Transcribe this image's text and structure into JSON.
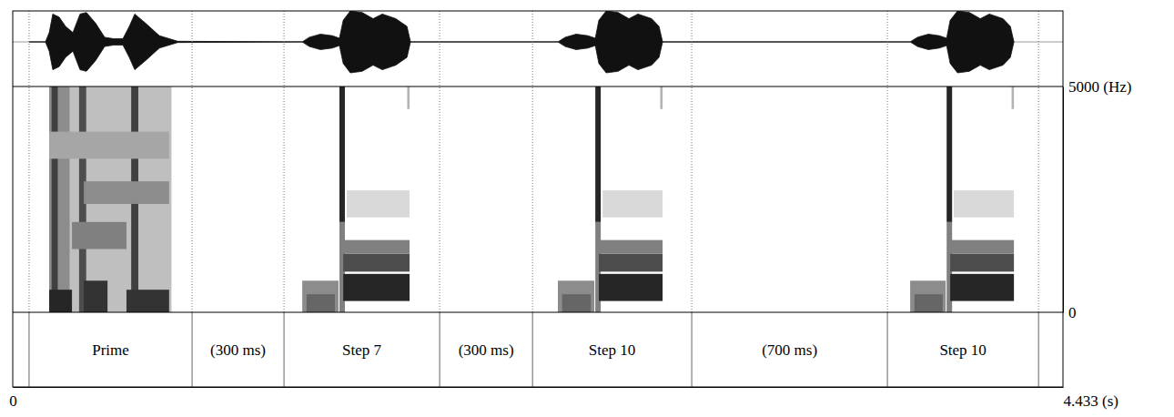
{
  "chart_data": {
    "type": "spectrogram",
    "xlim": [
      0,
      4.433
    ],
    "xticks": [
      0,
      {
        "value": 4.433,
        "label": "4.433 (s)"
      }
    ],
    "ylim": [
      0,
      5000
    ],
    "yticks": [
      0,
      {
        "value": 5000,
        "label": "5000 (Hz)"
      }
    ],
    "tick_labels": true,
    "waveform": {
      "ylim": [
        -1,
        1
      ],
      "t": [
        0.069,
        0.138,
        0.154,
        0.169,
        0.196,
        0.223,
        0.254,
        0.284,
        0.311,
        0.35,
        0.388,
        0.426,
        0.465,
        0.492,
        0.515,
        0.561,
        0.619,
        0.696,
        1.222,
        1.252,
        1.299,
        1.349,
        1.379,
        1.395,
        1.425,
        1.475,
        1.521,
        1.56,
        1.617,
        1.664,
        1.679,
        2.301,
        2.332,
        2.378,
        2.428,
        2.459,
        2.474,
        2.505,
        2.555,
        2.601,
        2.639,
        2.697,
        2.728,
        2.743,
        3.788,
        3.819,
        3.865,
        3.911,
        3.942,
        3.957,
        3.988,
        4.038,
        4.084,
        4.122,
        4.18,
        4.211,
        4.226
      ],
      "amplitude": [
        0,
        0,
        0.3,
        0.9,
        0.8,
        0.5,
        0.3,
        0.9,
        0.95,
        0.6,
        0.15,
        0.1,
        0.1,
        0.5,
        0.9,
        0.6,
        0.2,
        0.02,
        0,
        0.15,
        0.25,
        0.2,
        0.12,
        0.7,
        1.0,
        0.95,
        0.75,
        0.9,
        0.75,
        0.5,
        0,
        0,
        0.15,
        0.25,
        0.2,
        0.12,
        0.7,
        1.0,
        0.95,
        0.75,
        0.9,
        0.75,
        0.5,
        0,
        0,
        0.15,
        0.25,
        0.2,
        0.12,
        0.7,
        1.0,
        0.95,
        0.75,
        0.9,
        0.75,
        0.5,
        0
      ]
    },
    "spectrogram": {
      "cells": [
        [
          0.154,
          0.67,
          0,
          5000,
          0.25
        ],
        [
          0.154,
          0.24,
          0,
          5000,
          0.45
        ],
        [
          0.164,
          0.19,
          0,
          5000,
          0.75
        ],
        [
          0.28,
          0.31,
          0,
          5000,
          0.7
        ],
        [
          0.5,
          0.53,
          0,
          5000,
          0.75
        ],
        [
          0.25,
          0.48,
          1400,
          2000,
          0.5
        ],
        [
          0.3,
          0.66,
          2400,
          2900,
          0.45
        ],
        [
          0.154,
          0.66,
          3400,
          4000,
          0.35
        ],
        [
          0.154,
          0.25,
          0,
          500,
          0.85
        ],
        [
          0.3,
          0.4,
          0,
          700,
          0.8
        ],
        [
          0.48,
          0.66,
          0,
          500,
          0.8
        ],
        [
          1.222,
          1.375,
          0,
          700,
          0.45
        ],
        [
          1.24,
          1.36,
          0,
          400,
          0.6
        ],
        [
          1.379,
          1.402,
          0,
          2000,
          0.5
        ],
        [
          1.395,
          1.675,
          250,
          850,
          0.85
        ],
        [
          1.395,
          1.675,
          900,
          1300,
          0.7
        ],
        [
          1.395,
          1.675,
          1300,
          1600,
          0.5
        ],
        [
          1.41,
          1.675,
          2100,
          2700,
          0.15
        ],
        [
          1.665,
          1.675,
          4500,
          5000,
          0.3
        ],
        [
          1.379,
          1.402,
          2000,
          5000,
          0.85
        ],
        [
          2.301,
          2.455,
          0,
          700,
          0.45
        ],
        [
          2.319,
          2.44,
          0,
          400,
          0.6
        ],
        [
          2.459,
          2.482,
          0,
          2000,
          0.5
        ],
        [
          2.474,
          2.743,
          250,
          850,
          0.85
        ],
        [
          2.474,
          2.743,
          900,
          1300,
          0.7
        ],
        [
          2.474,
          2.743,
          1300,
          1600,
          0.5
        ],
        [
          2.49,
          2.743,
          2100,
          2700,
          0.15
        ],
        [
          2.733,
          2.743,
          4500,
          5000,
          0.3
        ],
        [
          2.459,
          2.482,
          2000,
          5000,
          0.85
        ],
        [
          3.788,
          3.938,
          0,
          700,
          0.45
        ],
        [
          3.806,
          3.925,
          0,
          400,
          0.6
        ],
        [
          3.942,
          3.965,
          0,
          2000,
          0.5
        ],
        [
          3.957,
          4.226,
          250,
          850,
          0.85
        ],
        [
          3.957,
          4.226,
          900,
          1300,
          0.7
        ],
        [
          3.957,
          4.226,
          1300,
          1600,
          0.5
        ],
        [
          3.972,
          4.226,
          2100,
          2700,
          0.15
        ],
        [
          4.216,
          4.226,
          4500,
          5000,
          0.3
        ],
        [
          3.942,
          3.965,
          2000,
          5000,
          0.85
        ]
      ]
    },
    "tier": {
      "boundaries": [
        0.069,
        0.757,
        1.145,
        1.802,
        2.194,
        2.866,
        3.692,
        4.33
      ],
      "labels": [
        null,
        "Prime",
        "(300 ms)",
        "Step 7",
        "(300 ms)",
        "Step 10",
        "(700 ms)",
        "Step 10",
        null
      ]
    }
  }
}
